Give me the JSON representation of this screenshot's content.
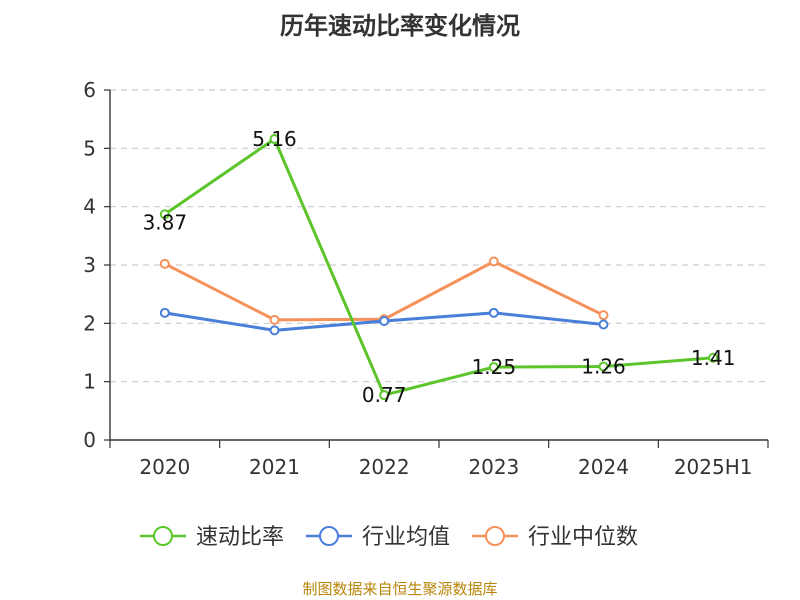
{
  "chart_data": {
    "type": "line",
    "title": "历年速动比率变化情况",
    "categories": [
      "2020",
      "2021",
      "2022",
      "2023",
      "2024",
      "2025H1"
    ],
    "ylim": [
      0,
      6
    ],
    "yticks": [
      0,
      1,
      2,
      3,
      4,
      5,
      6
    ],
    "grid": true,
    "legend_position": "bottom",
    "series": [
      {
        "name": "速动比率",
        "color": "#5cc52b",
        "values": [
          3.87,
          5.16,
          0.77,
          1.25,
          1.26,
          1.41
        ],
        "labels": [
          "3.87",
          "5.16",
          "0.77",
          "1.25",
          "1.26",
          "1.41"
        ]
      },
      {
        "name": "行业均值",
        "color": "#4a7fd9",
        "values": [
          2.18,
          1.88,
          2.04,
          2.18,
          1.98,
          null
        ]
      },
      {
        "name": "行业中位数",
        "color": "#f5915a",
        "values": [
          3.02,
          2.06,
          2.07,
          3.06,
          2.14,
          null
        ]
      }
    ]
  },
  "source": "制图数据来自恒生聚源数据库"
}
